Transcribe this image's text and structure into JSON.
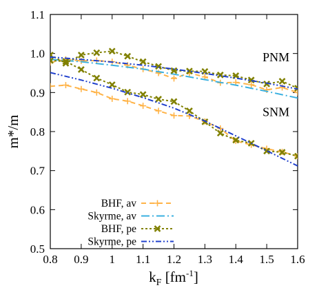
{
  "chart_data": {
    "type": "line",
    "title": "",
    "xlabel": {
      "base": "k",
      "sub": "F",
      "tail": " [fm",
      "sup": "-1",
      "close": "]"
    },
    "ylabel": "m*/m",
    "xlim": [
      0.8,
      1.6
    ],
    "ylim": [
      0.5,
      1.1
    ],
    "xticks": [
      "0.8",
      "0.9",
      "1",
      "1.1",
      "1.2",
      "1.3",
      "1.4",
      "1.5",
      "1.6"
    ],
    "yticks": [
      "0.5",
      "0.6",
      "0.7",
      "0.8",
      "0.9",
      "1.0",
      "1.1"
    ],
    "grid": false,
    "legend_position": "bottom-left",
    "annotations": [
      {
        "text": "PNM",
        "x": 1.53,
        "y": 0.98
      },
      {
        "text": "SNM",
        "x": 1.53,
        "y": 0.84
      }
    ],
    "series": [
      {
        "name": "BHF, av",
        "color": "#ffb347",
        "dash": "7,5",
        "marker": "plus",
        "curves": [
          [
            [
              0.8,
              0.916
            ],
            [
              0.85,
              0.919
            ],
            [
              0.9,
              0.909
            ],
            [
              0.95,
              0.9
            ],
            [
              1.0,
              0.884
            ],
            [
              1.05,
              0.878
            ],
            [
              1.1,
              0.866
            ],
            [
              1.15,
              0.853
            ],
            [
              1.2,
              0.841
            ],
            [
              1.25,
              0.84
            ],
            [
              1.3,
              0.826
            ],
            [
              1.35,
              0.808
            ],
            [
              1.4,
              0.776
            ],
            [
              1.45,
              0.766
            ],
            [
              1.5,
              0.756
            ],
            [
              1.55,
              0.748
            ],
            [
              1.6,
              0.737
            ]
          ],
          [
            [
              0.8,
              0.977
            ],
            [
              0.85,
              0.985
            ],
            [
              0.9,
              0.981
            ],
            [
              0.95,
              0.982
            ],
            [
              1.0,
              0.979
            ],
            [
              1.05,
              0.97
            ],
            [
              1.1,
              0.96
            ],
            [
              1.15,
              0.95
            ],
            [
              1.2,
              0.936
            ],
            [
              1.25,
              0.95
            ],
            [
              1.3,
              0.94
            ],
            [
              1.35,
              0.925
            ],
            [
              1.4,
              0.926
            ],
            [
              1.45,
              0.92
            ],
            [
              1.5,
              0.907
            ],
            [
              1.55,
              0.913
            ],
            [
              1.6,
              0.9
            ]
          ]
        ]
      },
      {
        "name": "Skyrme, av",
        "color": "#3ab0e0",
        "dash": "12,4,2,4",
        "marker": "none",
        "curves": [
          [
            [
              0.8,
              0.985
            ],
            [
              0.9,
              0.979
            ],
            [
              1.0,
              0.97
            ],
            [
              1.1,
              0.96
            ],
            [
              1.2,
              0.947
            ],
            [
              1.3,
              0.933
            ],
            [
              1.4,
              0.919
            ],
            [
              1.5,
              0.903
            ],
            [
              1.6,
              0.886
            ]
          ]
        ]
      },
      {
        "name": "BHF, pe",
        "color": "#808000",
        "dash": "3,3",
        "marker": "cross",
        "curves": [
          [
            [
              0.8,
              0.982
            ],
            [
              0.85,
              0.98
            ],
            [
              0.9,
              0.959
            ],
            [
              0.95,
              0.937
            ],
            [
              1.0,
              0.92
            ],
            [
              1.05,
              0.901
            ],
            [
              1.1,
              0.895
            ],
            [
              1.15,
              0.883
            ],
            [
              1.2,
              0.877
            ],
            [
              1.25,
              0.853
            ],
            [
              1.3,
              0.825
            ],
            [
              1.35,
              0.796
            ],
            [
              1.4,
              0.778
            ],
            [
              1.45,
              0.77
            ],
            [
              1.5,
              0.75
            ],
            [
              1.55,
              0.747
            ],
            [
              1.6,
              0.737
            ]
          ],
          [
            [
              0.8,
              0.996
            ],
            [
              0.85,
              0.975
            ],
            [
              0.9,
              0.996
            ],
            [
              0.95,
              1.002
            ],
            [
              1.0,
              1.006
            ],
            [
              1.05,
              0.993
            ],
            [
              1.1,
              0.979
            ],
            [
              1.15,
              0.967
            ],
            [
              1.2,
              0.956
            ],
            [
              1.25,
              0.955
            ],
            [
              1.3,
              0.954
            ],
            [
              1.35,
              0.945
            ],
            [
              1.4,
              0.943
            ],
            [
              1.45,
              0.932
            ],
            [
              1.5,
              0.922
            ],
            [
              1.55,
              0.929
            ],
            [
              1.6,
              0.911
            ]
          ]
        ]
      },
      {
        "name": "Skyrme, pe",
        "color": "#1f3fcc",
        "dash": "8,3,2,3,2,3",
        "marker": "none",
        "curves": [
          [
            [
              0.8,
              0.951
            ],
            [
              0.9,
              0.932
            ],
            [
              1.0,
              0.911
            ],
            [
              1.1,
              0.887
            ],
            [
              1.2,
              0.86
            ],
            [
              1.3,
              0.827
            ],
            [
              1.4,
              0.789
            ],
            [
              1.5,
              0.751
            ],
            [
              1.6,
              0.712
            ]
          ],
          [
            [
              0.8,
              0.991
            ],
            [
              0.9,
              0.985
            ],
            [
              1.0,
              0.978
            ],
            [
              1.1,
              0.97
            ],
            [
              1.2,
              0.96
            ],
            [
              1.3,
              0.949
            ],
            [
              1.4,
              0.937
            ],
            [
              1.5,
              0.924
            ],
            [
              1.6,
              0.909
            ]
          ]
        ]
      }
    ]
  }
}
